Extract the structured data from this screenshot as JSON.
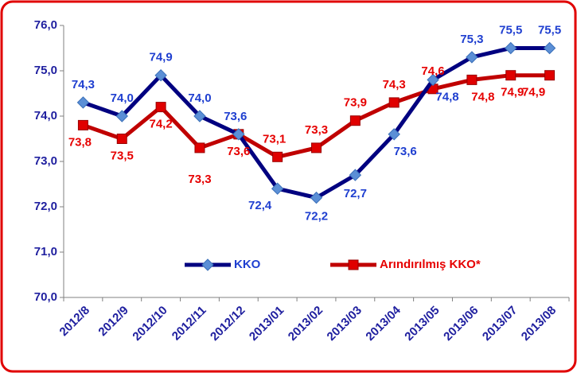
{
  "chart_data": {
    "type": "line",
    "categories": [
      "2012/8",
      "2012/9",
      "2012/10",
      "2012/11",
      "2012/12",
      "2013/01",
      "2013/02",
      "2013/03",
      "2013/04",
      "2013/05",
      "2013/06",
      "2013/07",
      "2013/08"
    ],
    "series": [
      {
        "name": "KKO",
        "color": "#000080",
        "marker_color": "#5b8fd6",
        "marker": "diamond",
        "values": [
          74.3,
          74.0,
          74.9,
          74.0,
          73.6,
          72.4,
          72.2,
          72.7,
          73.6,
          74.8,
          75.3,
          75.5,
          75.5
        ],
        "value_labels": [
          "74,3",
          "74,0",
          "74,9",
          "74,0",
          "73,6",
          "72,4",
          "72,2",
          "72,7",
          "73,6",
          "74,8",
          "75,3",
          "75,5",
          "75,5"
        ]
      },
      {
        "name": "Arındırılmış KKO*",
        "color": "#c00000",
        "marker_color": "#e00000",
        "marker": "square",
        "values": [
          73.8,
          73.5,
          74.2,
          73.3,
          73.6,
          73.1,
          73.3,
          73.9,
          74.3,
          74.6,
          74.8,
          74.9,
          74.9
        ],
        "value_labels": [
          "73,8",
          "73,5",
          "74,2",
          "73,3",
          "73,6",
          "73,1",
          "73,3",
          "73,9",
          "74,3",
          "74,6",
          "74,8",
          "74,9",
          "74,9"
        ]
      }
    ],
    "ylim": [
      70,
      76
    ],
    "yticks": [
      {
        "value": 70,
        "label": "70,0"
      },
      {
        "value": 71,
        "label": "71,0"
      },
      {
        "value": 72,
        "label": "72,0"
      },
      {
        "value": 73,
        "label": "73,0"
      },
      {
        "value": 74,
        "label": "74,0"
      },
      {
        "value": 75,
        "label": "75,0"
      },
      {
        "value": 76,
        "label": "76,0"
      }
    ],
    "grid": false
  }
}
